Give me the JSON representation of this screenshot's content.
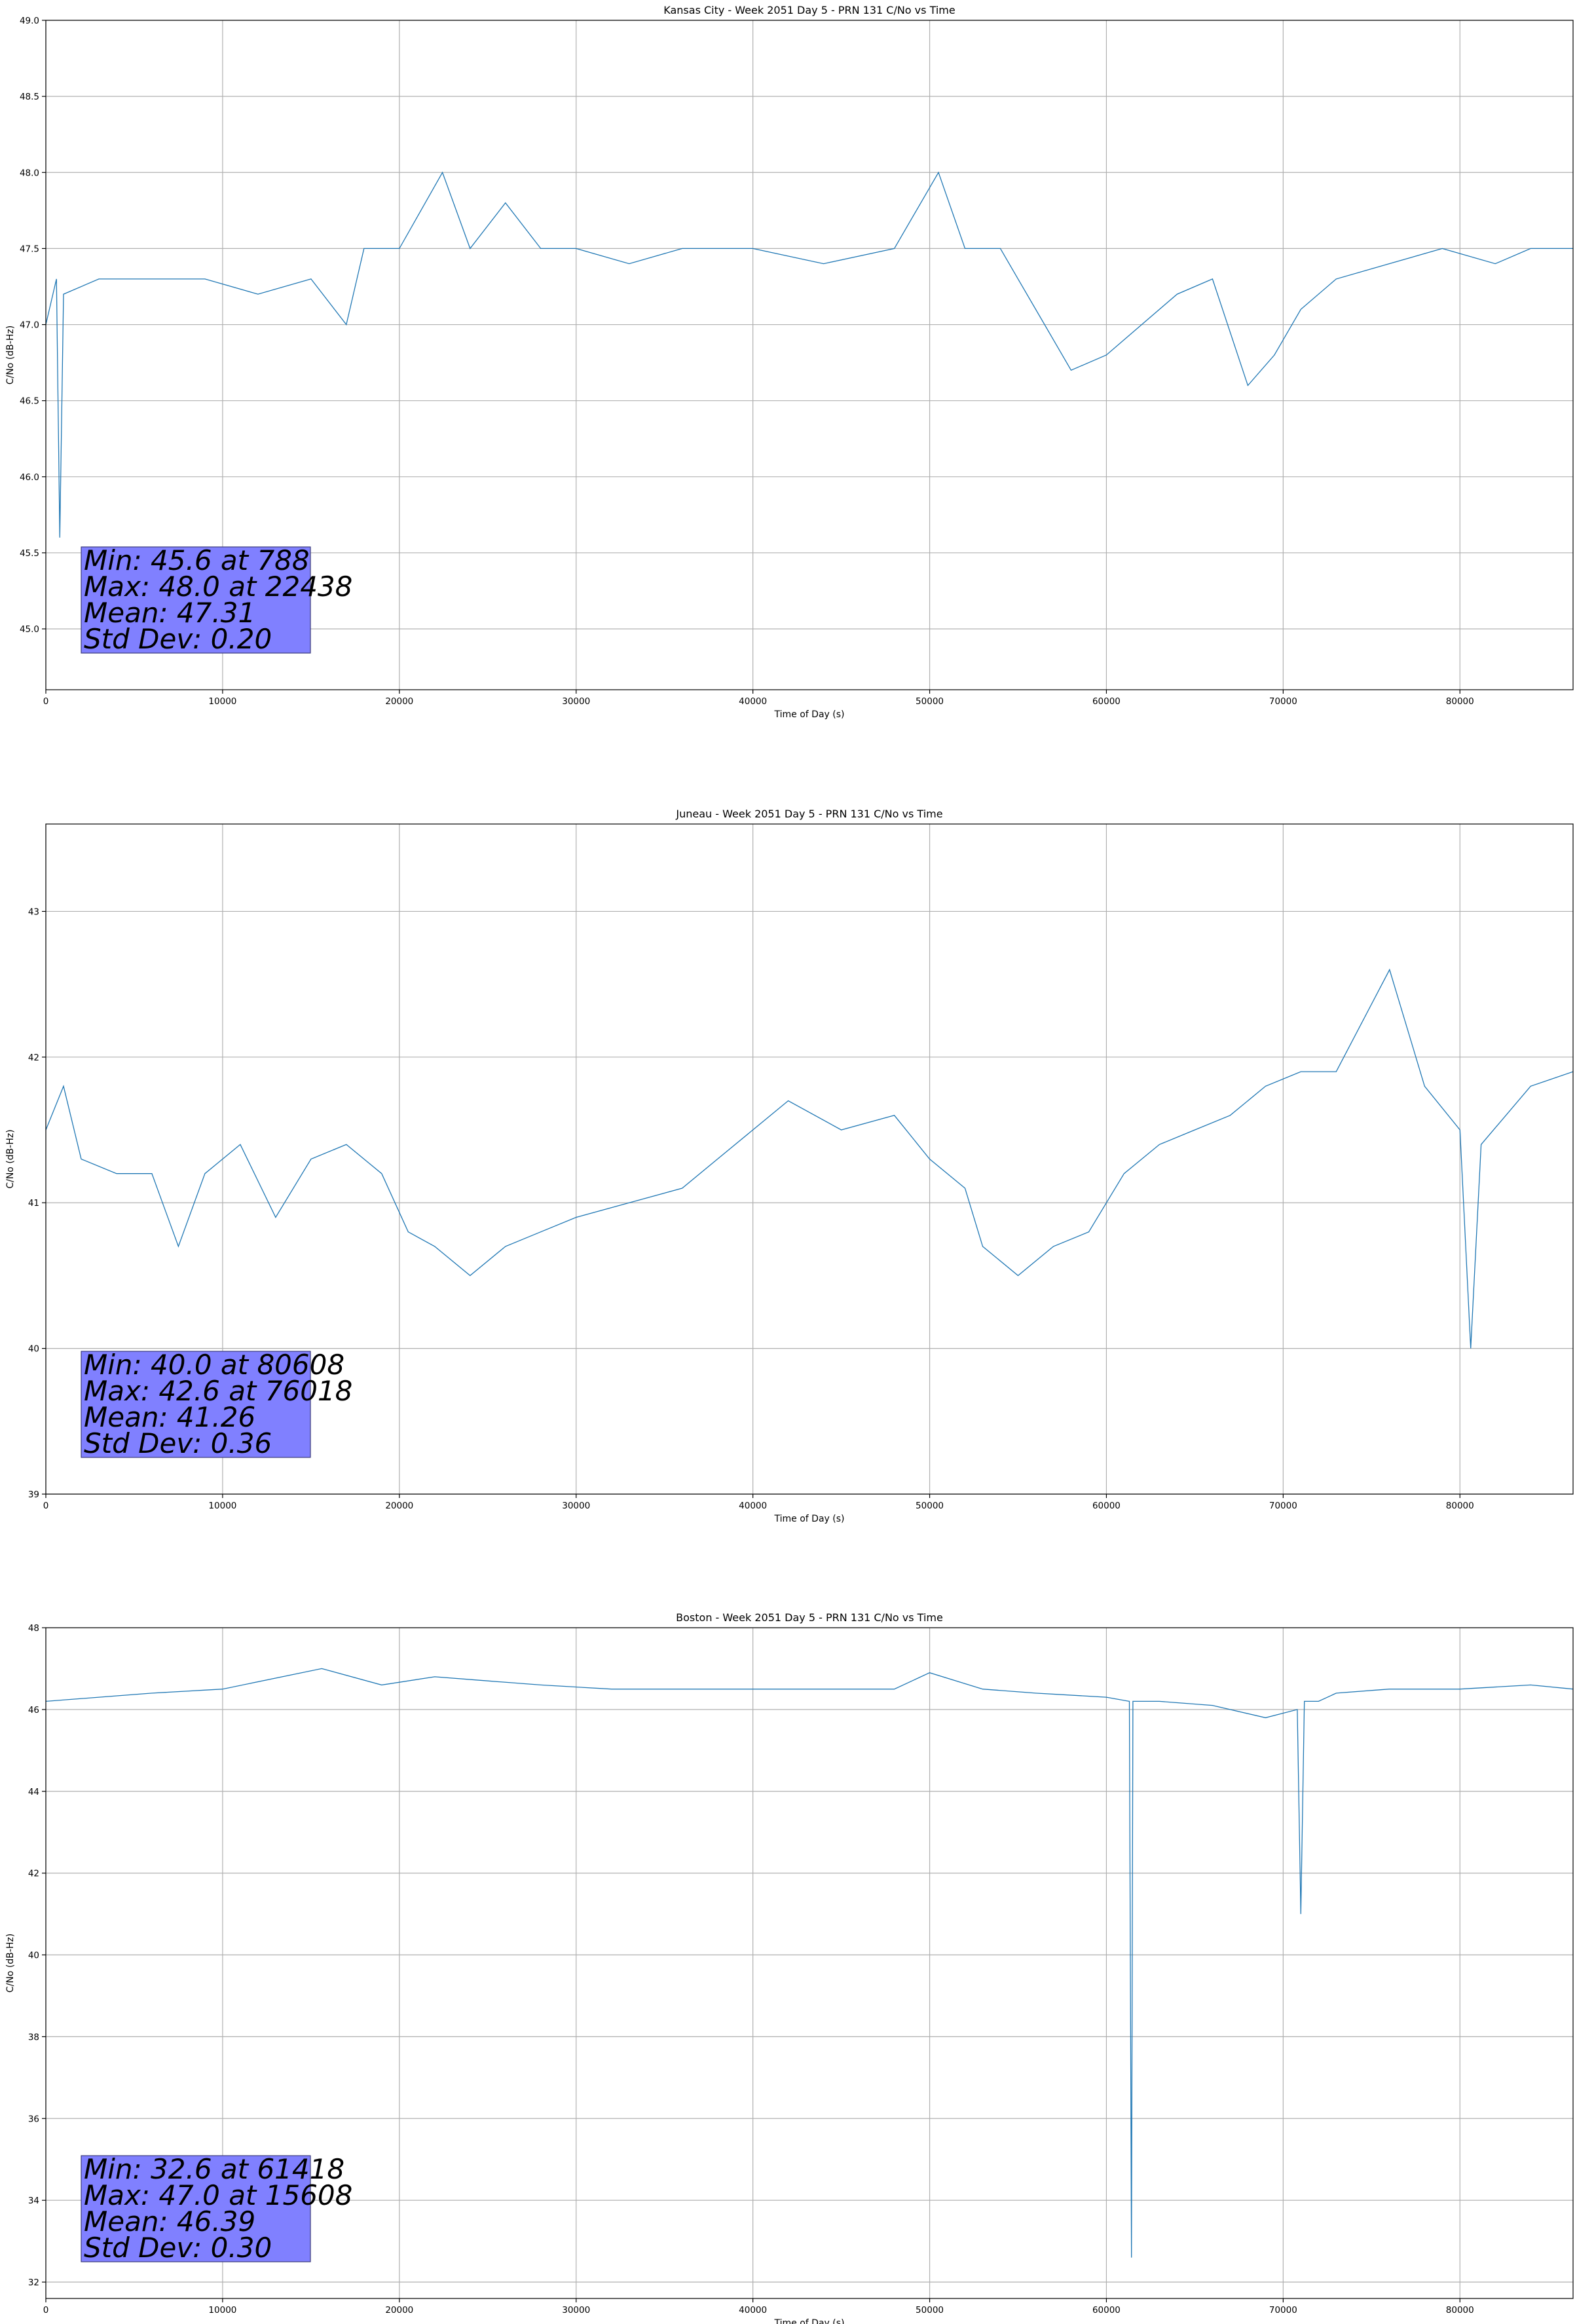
{
  "colors": {
    "series": "#1f77b4",
    "grid": "#b0b0b0",
    "statbox": "#8080ff"
  },
  "chart_data": [
    {
      "type": "line",
      "title": "Kansas City - Week 2051 Day 5 - PRN 131 C/No vs Time",
      "xlabel": "Time of Day (s)",
      "ylabel": "C/No (dB-Hz)",
      "xlim": [
        0,
        86400
      ],
      "ylim": [
        44.6,
        49.0
      ],
      "xticks": [
        0,
        10000,
        20000,
        30000,
        40000,
        50000,
        60000,
        70000,
        80000
      ],
      "yticks": [
        "45.0",
        "45.5",
        "46.0",
        "46.5",
        "47.0",
        "47.5",
        "48.0",
        "48.5",
        "49.0"
      ],
      "grid": true,
      "stats": {
        "min": "Min: 45.6 at 788",
        "max": "Max: 48.0 at 22438",
        "mean": "Mean: 47.31",
        "std": "Std Dev: 0.20"
      },
      "series": [
        {
          "name": "PRN 131 C/No",
          "x": [
            0,
            600,
            788,
            1000,
            3000,
            6000,
            9000,
            12000,
            15000,
            17000,
            18000,
            20000,
            22438,
            24000,
            26000,
            28000,
            30000,
            33000,
            36000,
            40000,
            44000,
            48000,
            50500,
            52000,
            54000,
            55000,
            56500,
            58000,
            60000,
            62000,
            64000,
            66000,
            68000,
            69500,
            71000,
            73000,
            76000,
            79000,
            82000,
            84000,
            86400
          ],
          "values": [
            47.0,
            47.3,
            45.6,
            47.2,
            47.3,
            47.3,
            47.3,
            47.2,
            47.3,
            47.0,
            47.5,
            47.5,
            48.0,
            47.5,
            47.8,
            47.5,
            47.5,
            47.4,
            47.5,
            47.5,
            47.4,
            47.5,
            48.0,
            47.5,
            47.5,
            47.3,
            47.0,
            46.7,
            46.8,
            47.0,
            47.2,
            47.3,
            46.6,
            46.8,
            47.1,
            47.3,
            47.4,
            47.5,
            47.4,
            47.5,
            47.5
          ]
        }
      ]
    },
    {
      "type": "line",
      "title": "Juneau - Week 2051 Day 5 - PRN 131 C/No vs Time",
      "xlabel": "Time of Day (s)",
      "ylabel": "C/No (dB-Hz)",
      "xlim": [
        0,
        86400
      ],
      "ylim": [
        39.0,
        43.6
      ],
      "xticks": [
        0,
        10000,
        20000,
        30000,
        40000,
        50000,
        60000,
        70000,
        80000
      ],
      "yticks": [
        "39",
        "40",
        "41",
        "42",
        "43"
      ],
      "grid": true,
      "stats": {
        "min": "Min: 40.0 at 80608",
        "max": "Max: 42.6 at 76018",
        "mean": "Mean: 41.26",
        "std": "Std Dev: 0.36"
      },
      "series": [
        {
          "name": "PRN 131 C/No",
          "x": [
            0,
            1000,
            2000,
            4000,
            6000,
            7500,
            9000,
            11000,
            13000,
            15000,
            17000,
            19000,
            20500,
            22000,
            24000,
            26000,
            28000,
            30000,
            33000,
            36000,
            38000,
            40000,
            42000,
            45000,
            48000,
            50000,
            52000,
            53000,
            55000,
            57000,
            59000,
            61000,
            63000,
            65000,
            67000,
            69000,
            71000,
            73000,
            76018,
            78000,
            80000,
            80608,
            81200,
            84000,
            86400
          ],
          "values": [
            41.5,
            41.8,
            41.3,
            41.2,
            41.2,
            40.7,
            41.2,
            41.4,
            40.9,
            41.3,
            41.4,
            41.2,
            40.8,
            40.7,
            40.5,
            40.7,
            40.8,
            40.9,
            41.0,
            41.1,
            41.3,
            41.5,
            41.7,
            41.5,
            41.6,
            41.3,
            41.1,
            40.7,
            40.5,
            40.7,
            40.8,
            41.2,
            41.4,
            41.5,
            41.6,
            41.8,
            41.9,
            41.9,
            42.6,
            41.8,
            41.5,
            40.0,
            41.4,
            41.8,
            41.9
          ]
        }
      ]
    },
    {
      "type": "line",
      "title": "Boston - Week 2051 Day 5 - PRN 131 C/No vs Time",
      "xlabel": "Time of Day (s)",
      "ylabel": "C/No (dB-Hz)",
      "xlim": [
        0,
        86400
      ],
      "ylim": [
        31.6,
        48.0
      ],
      "xticks": [
        0,
        10000,
        20000,
        30000,
        40000,
        50000,
        60000,
        70000,
        80000
      ],
      "yticks": [
        "32",
        "34",
        "36",
        "38",
        "40",
        "42",
        "44",
        "46",
        "48"
      ],
      "grid": true,
      "stats": {
        "min": "Min: 32.6 at 61418",
        "max": "Max: 47.0 at 15608",
        "mean": "Mean: 46.39",
        "std": "Std Dev: 0.30"
      },
      "series": [
        {
          "name": "PRN 131 C/No",
          "x": [
            0,
            3000,
            6000,
            10000,
            15608,
            19000,
            22000,
            25000,
            28000,
            32000,
            38000,
            44000,
            48000,
            50000,
            53000,
            56000,
            60000,
            61300,
            61418,
            61500,
            63000,
            66000,
            69000,
            70800,
            71000,
            71200,
            72000,
            73000,
            76000,
            80000,
            84000,
            86400
          ],
          "values": [
            46.2,
            46.3,
            46.4,
            46.5,
            47.0,
            46.6,
            46.8,
            46.7,
            46.6,
            46.5,
            46.5,
            46.5,
            46.5,
            46.9,
            46.5,
            46.4,
            46.3,
            46.2,
            32.6,
            46.2,
            46.2,
            46.1,
            45.8,
            46.0,
            41.0,
            46.2,
            46.2,
            46.4,
            46.5,
            46.5,
            46.6,
            46.5
          ]
        }
      ]
    }
  ]
}
